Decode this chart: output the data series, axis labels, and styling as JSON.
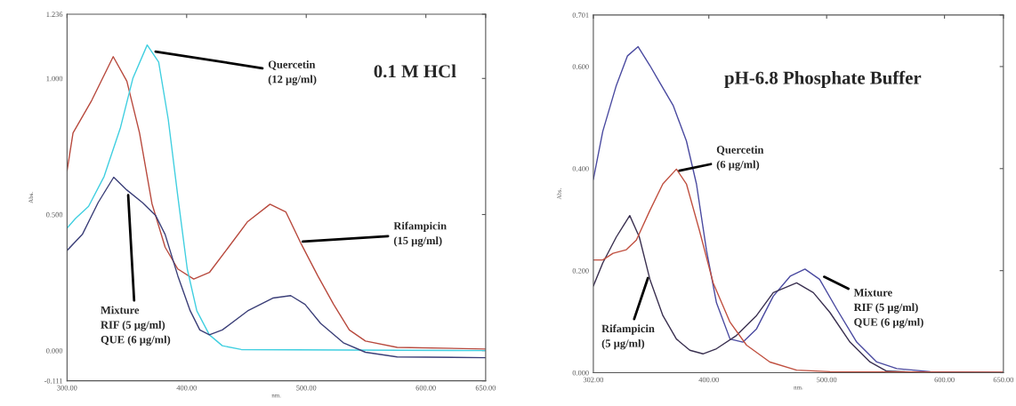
{
  "chart_data": [
    {
      "type": "line",
      "title": "0.1 M HCl",
      "xlabel": "nm.",
      "ylabel": "Abs.",
      "xlim": [
        300,
        650
      ],
      "ylim": [
        -0.111,
        1.236
      ],
      "xticks": [
        {
          "value": 300,
          "label": "300.00"
        },
        {
          "value": 400,
          "label": "400.00"
        },
        {
          "value": 500,
          "label": "500.00"
        },
        {
          "value": 600,
          "label": "600.00"
        },
        {
          "value": 650,
          "label": "650.00"
        }
      ],
      "yticks": [
        {
          "value": -0.111,
          "label": "-0.111"
        },
        {
          "value": 0,
          "label": "0.000"
        },
        {
          "value": 0.5,
          "label": "0.500"
        },
        {
          "value": 1.0,
          "label": "1.000"
        },
        {
          "value": 1.236,
          "label": "1.236"
        }
      ],
      "grid": false,
      "series": [
        {
          "color": "#b84a3e",
          "x": [
            300,
            305,
            320.7,
            338.6,
            350,
            360.6,
            371,
            382,
            392.6,
            405.9,
            419,
            435,
            451,
            469.7,
            483,
            496,
            509.6,
            522.9,
            536,
            549.5,
            576,
            650
          ],
          "values": [
            0.66,
            0.8,
            0.92,
            1.08,
            0.99,
            0.8,
            0.54,
            0.38,
            0.3,
            0.263,
            0.287,
            0.38,
            0.474,
            0.538,
            0.509,
            0.39,
            0.275,
            0.17,
            0.076,
            0.035,
            0.012,
            0.006
          ]
        },
        {
          "color": "#40cfe0",
          "x": [
            300,
            307,
            318,
            331,
            344.7,
            355,
            367,
            376.6,
            384.6,
            392.6,
            400.5,
            408.5,
            419,
            429.8,
            445.7,
            650
          ],
          "values": [
            0.45,
            0.485,
            0.53,
            0.64,
            0.82,
            1.0,
            1.123,
            1.06,
            0.85,
            0.567,
            0.3,
            0.146,
            0.058,
            0.018,
            0.004,
            0.0
          ]
        },
        {
          "color": "#3b3f78",
          "x": [
            300,
            312.8,
            326,
            339,
            350,
            363,
            374,
            382,
            392.6,
            403,
            411,
            419,
            429.8,
            451,
            472,
            487,
            499,
            512,
            531,
            549.5,
            576,
            650
          ],
          "values": [
            0.368,
            0.427,
            0.544,
            0.637,
            0.59,
            0.544,
            0.497,
            0.427,
            0.275,
            0.146,
            0.076,
            0.058,
            0.076,
            0.146,
            0.193,
            0.202,
            0.17,
            0.1,
            0.029,
            -0.006,
            -0.023,
            -0.026
          ]
        }
      ],
      "annotations": [
        {
          "text": "Quercetin\n(12 µg/ml)",
          "x": 372,
          "y": 1.1
        },
        {
          "text": "Rifampicin\n(15 µg/ml)",
          "x": 495,
          "y": 0.4
        },
        {
          "text": "Mixture\nRIF (5 µg/ml)\nQUE (6 µg/ml)",
          "x": 351,
          "y": 0.58
        }
      ]
    },
    {
      "type": "line",
      "title": "pH-6.8 Phosphate Buffer",
      "xlabel": "nm.",
      "ylabel": "Abs.",
      "xlim": [
        302,
        650
      ],
      "ylim": [
        0,
        0.701
      ],
      "xticks": [
        {
          "value": 302,
          "label": "302.00"
        },
        {
          "value": 400,
          "label": "400.00"
        },
        {
          "value": 500,
          "label": "500.00"
        },
        {
          "value": 600,
          "label": "600.00"
        },
        {
          "value": 650,
          "label": "650.00"
        }
      ],
      "yticks": [
        {
          "value": 0,
          "label": "0.000"
        },
        {
          "value": 0.2,
          "label": "0.200"
        },
        {
          "value": 0.4,
          "label": "0.400"
        },
        {
          "value": 0.6,
          "label": "0.600"
        },
        {
          "value": 0.701,
          "label": "0.701"
        }
      ],
      "grid": false,
      "series": [
        {
          "color": "#4a4aa0",
          "x": [
            302,
            310,
            321.5,
            331,
            340,
            350,
            358,
            369.7,
            381,
            389.5,
            398,
            406.5,
            418,
            429,
            440.5,
            454.7,
            469,
            481.6,
            494,
            508.5,
            525.5,
            542.5,
            559.5,
            588,
            650
          ],
          "values": [
            0.379,
            0.473,
            0.563,
            0.621,
            0.639,
            0.602,
            0.57,
            0.524,
            0.454,
            0.37,
            0.24,
            0.137,
            0.066,
            0.06,
            0.086,
            0.15,
            0.189,
            0.203,
            0.183,
            0.125,
            0.06,
            0.021,
            0.008,
            0.002,
            0.0
          ]
        },
        {
          "color": "#3a3050",
          "x": [
            302,
            310,
            321.5,
            332.9,
            341,
            350,
            361,
            372.5,
            383.9,
            395,
            406.5,
            423.5,
            440.5,
            454.7,
            474.5,
            488.7,
            502.8,
            519.8,
            536.8,
            551,
            588,
            650
          ],
          "values": [
            0.17,
            0.215,
            0.266,
            0.308,
            0.266,
            0.183,
            0.112,
            0.066,
            0.044,
            0.037,
            0.047,
            0.073,
            0.112,
            0.157,
            0.176,
            0.157,
            0.118,
            0.06,
            0.021,
            0.003,
            0.0,
            0.0
          ]
        },
        {
          "color": "#c05040",
          "x": [
            302,
            310,
            318.7,
            330,
            338.5,
            350,
            361,
            372.5,
            381,
            392,
            403.7,
            418,
            432,
            451.8,
            474.5,
            502.8,
            650
          ],
          "values": [
            0.221,
            0.221,
            0.234,
            0.241,
            0.26,
            0.318,
            0.37,
            0.399,
            0.37,
            0.279,
            0.176,
            0.099,
            0.054,
            0.021,
            0.005,
            0.002,
            0.001
          ]
        }
      ],
      "annotations": [
        {
          "text": "Quercetin\n(6 µg/ml)",
          "x": 373,
          "y": 0.395
        },
        {
          "text": "Mixture\nRIF (5 µg/ml)\nQUE (6 µg/ml)",
          "x": 496,
          "y": 0.19
        },
        {
          "text": "Rifampicin\n(5 µg/ml)",
          "x": 349,
          "y": 0.19
        }
      ]
    }
  ]
}
